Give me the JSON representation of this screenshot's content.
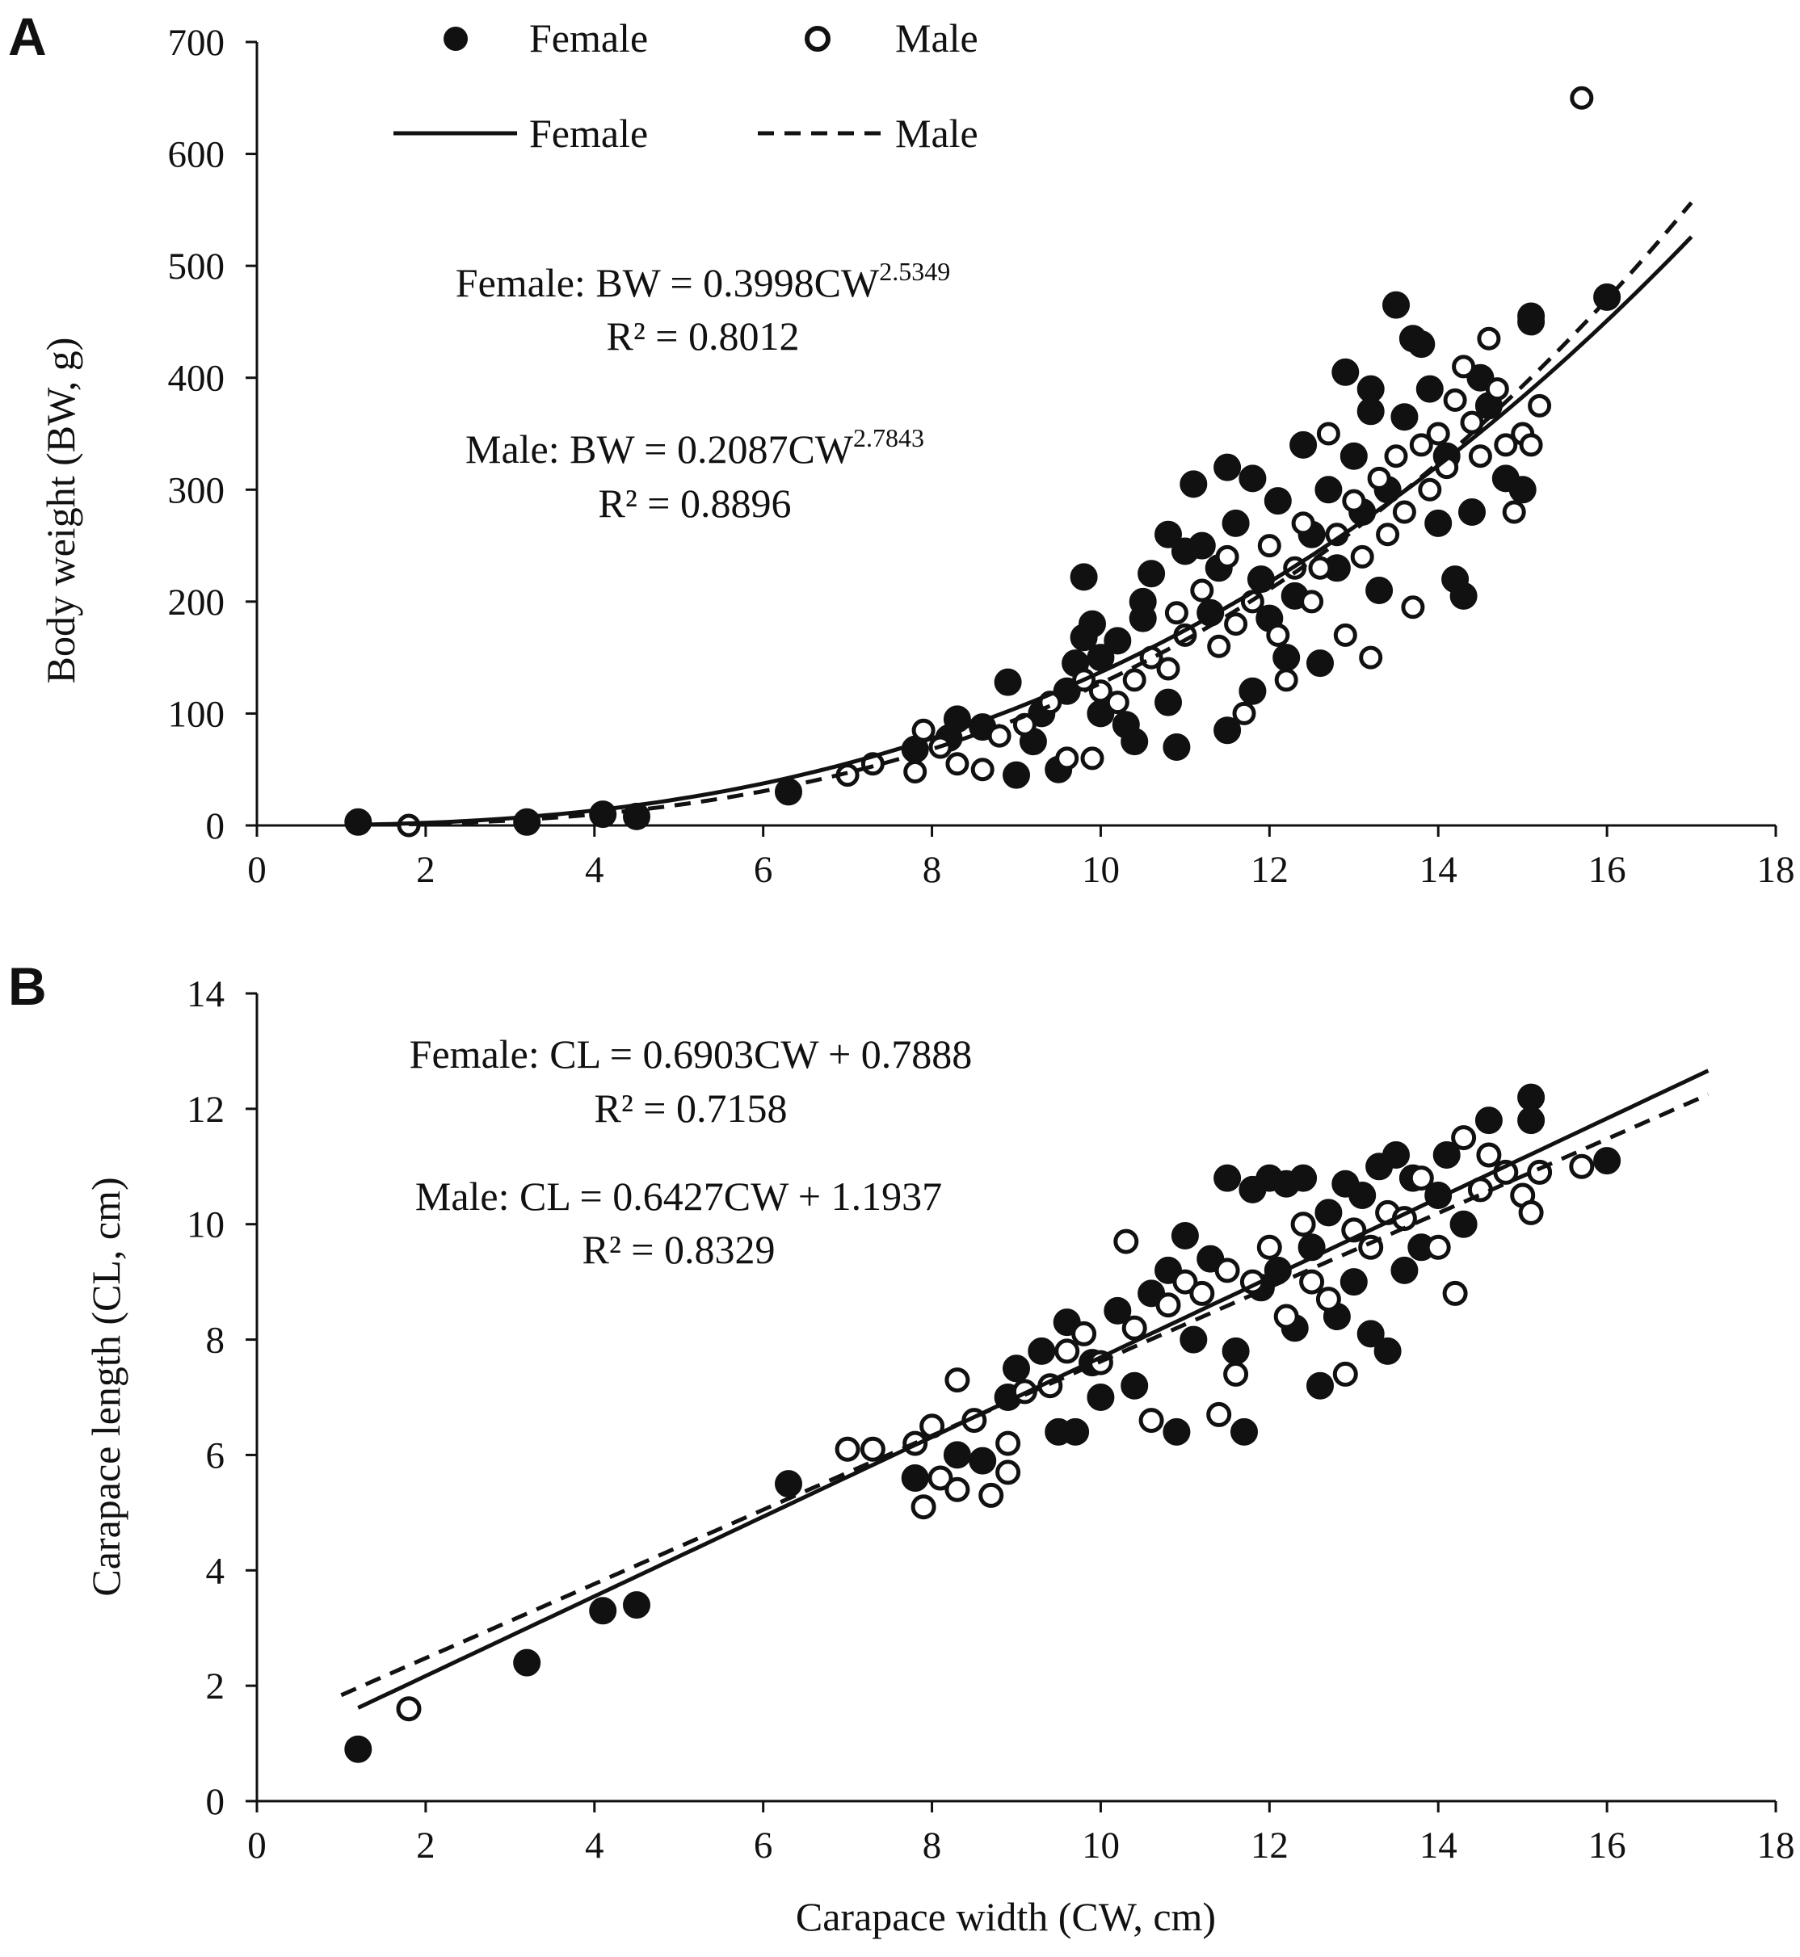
{
  "colors": {
    "ink": "#111111",
    "background": "#ffffff"
  },
  "chart_data": [
    {
      "panel": "A",
      "type": "scatter",
      "xlabel": "",
      "ylabel": "Body weight (BW, g)",
      "xlim": [
        0,
        18
      ],
      "ylim": [
        0,
        700
      ],
      "xticks": [
        "0",
        "2",
        "4",
        "6",
        "8",
        "10",
        "12",
        "14",
        "16",
        "18"
      ],
      "yticks": [
        "0",
        "100",
        "200",
        "300",
        "400",
        "500",
        "600",
        "700"
      ],
      "legend": {
        "marker_female": "Female",
        "marker_male": "Male",
        "line_female": "Female",
        "line_male": "Male",
        "placement": "top"
      },
      "equations": {
        "female_prefix": "Female: BW = 0.3998CW",
        "female_exp": "2.5349",
        "female_r2": "R² = 0.8012",
        "male_prefix": "Male: BW = 0.2087CW",
        "male_exp": "2.7843",
        "male_r2": "R² = 0.8896"
      },
      "fits": [
        {
          "series": "Female",
          "model": "power",
          "a": 0.3998,
          "b": 2.5349,
          "x_range": [
            1.2,
            17.0
          ],
          "style": "solid"
        },
        {
          "series": "Male",
          "model": "power",
          "a": 0.2087,
          "b": 2.7843,
          "x_range": [
            1.8,
            17.0
          ],
          "style": "dashed"
        }
      ],
      "series": [
        {
          "name": "Female",
          "marker": "filled-circle",
          "points": [
            [
              1.2,
              3
            ],
            [
              3.2,
              3
            ],
            [
              4.1,
              10
            ],
            [
              4.5,
              8
            ],
            [
              6.3,
              30
            ],
            [
              7.8,
              68
            ],
            [
              8.2,
              78
            ],
            [
              8.3,
              95
            ],
            [
              8.6,
              88
            ],
            [
              8.9,
              128
            ],
            [
              9.0,
              45
            ],
            [
              9.2,
              75
            ],
            [
              9.3,
              100
            ],
            [
              9.5,
              50
            ],
            [
              9.6,
              120
            ],
            [
              9.7,
              145
            ],
            [
              9.8,
              168
            ],
            [
              9.8,
              222
            ],
            [
              9.9,
              180
            ],
            [
              10.0,
              150
            ],
            [
              10.0,
              100
            ],
            [
              10.2,
              165
            ],
            [
              10.3,
              90
            ],
            [
              10.4,
              75
            ],
            [
              10.5,
              185
            ],
            [
              10.5,
              200
            ],
            [
              10.6,
              225
            ],
            [
              10.8,
              260
            ],
            [
              10.8,
              110
            ],
            [
              10.9,
              70
            ],
            [
              11.0,
              245
            ],
            [
              11.1,
              305
            ],
            [
              11.2,
              250
            ],
            [
              11.3,
              190
            ],
            [
              11.4,
              230
            ],
            [
              11.5,
              320
            ],
            [
              11.5,
              85
            ],
            [
              11.6,
              270
            ],
            [
              11.8,
              310
            ],
            [
              11.8,
              120
            ],
            [
              11.9,
              220
            ],
            [
              12.0,
              185
            ],
            [
              12.1,
              290
            ],
            [
              12.2,
              150
            ],
            [
              12.3,
              205
            ],
            [
              12.4,
              340
            ],
            [
              12.5,
              260
            ],
            [
              12.6,
              145
            ],
            [
              12.7,
              300
            ],
            [
              12.8,
              230
            ],
            [
              12.9,
              405
            ],
            [
              13.0,
              330
            ],
            [
              13.1,
              280
            ],
            [
              13.2,
              390
            ],
            [
              13.2,
              370
            ],
            [
              13.3,
              210
            ],
            [
              13.4,
              300
            ],
            [
              13.5,
              465
            ],
            [
              13.6,
              365
            ],
            [
              13.7,
              435
            ],
            [
              13.8,
              430
            ],
            [
              13.9,
              390
            ],
            [
              14.0,
              270
            ],
            [
              14.1,
              330
            ],
            [
              14.2,
              220
            ],
            [
              14.3,
              205
            ],
            [
              14.4,
              280
            ],
            [
              14.5,
              400
            ],
            [
              14.6,
              375
            ],
            [
              14.8,
              310
            ],
            [
              15.0,
              300
            ],
            [
              15.1,
              455
            ],
            [
              15.1,
              450
            ],
            [
              16.0,
              472
            ]
          ]
        },
        {
          "name": "Male",
          "marker": "open-circle",
          "points": [
            [
              1.8,
              0
            ],
            [
              7.0,
              45
            ],
            [
              7.3,
              55
            ],
            [
              7.8,
              48
            ],
            [
              7.9,
              85
            ],
            [
              8.1,
              70
            ],
            [
              8.3,
              55
            ],
            [
              8.6,
              50
            ],
            [
              8.8,
              80
            ],
            [
              9.1,
              90
            ],
            [
              9.4,
              110
            ],
            [
              9.6,
              60
            ],
            [
              9.8,
              130
            ],
            [
              9.9,
              60
            ],
            [
              10.0,
              120
            ],
            [
              10.2,
              110
            ],
            [
              10.4,
              130
            ],
            [
              10.6,
              150
            ],
            [
              10.8,
              140
            ],
            [
              10.9,
              190
            ],
            [
              11.0,
              170
            ],
            [
              11.2,
              210
            ],
            [
              11.4,
              160
            ],
            [
              11.5,
              240
            ],
            [
              11.6,
              180
            ],
            [
              11.7,
              100
            ],
            [
              11.8,
              200
            ],
            [
              12.0,
              250
            ],
            [
              12.1,
              170
            ],
            [
              12.2,
              130
            ],
            [
              12.3,
              230
            ],
            [
              12.4,
              270
            ],
            [
              12.5,
              200
            ],
            [
              12.6,
              230
            ],
            [
              12.7,
              350
            ],
            [
              12.8,
              260
            ],
            [
              12.9,
              170
            ],
            [
              13.0,
              290
            ],
            [
              13.1,
              240
            ],
            [
              13.2,
              150
            ],
            [
              13.3,
              310
            ],
            [
              13.4,
              260
            ],
            [
              13.5,
              330
            ],
            [
              13.6,
              280
            ],
            [
              13.7,
              195
            ],
            [
              13.8,
              340
            ],
            [
              13.9,
              300
            ],
            [
              14.0,
              350
            ],
            [
              14.1,
              320
            ],
            [
              14.2,
              380
            ],
            [
              14.3,
              410
            ],
            [
              14.4,
              360
            ],
            [
              14.5,
              330
            ],
            [
              14.6,
              435
            ],
            [
              14.7,
              390
            ],
            [
              14.8,
              340
            ],
            [
              14.9,
              280
            ],
            [
              15.0,
              350
            ],
            [
              15.1,
              340
            ],
            [
              15.2,
              375
            ],
            [
              15.7,
              650
            ]
          ]
        }
      ]
    },
    {
      "panel": "B",
      "type": "scatter",
      "xlabel": "Carapace width (CW, cm)",
      "ylabel": "Carapace length (CL, cm)",
      "xlim": [
        0,
        18
      ],
      "ylim": [
        0,
        14
      ],
      "xticks": [
        "0",
        "2",
        "4",
        "6",
        "8",
        "10",
        "12",
        "14",
        "16",
        "18"
      ],
      "yticks": [
        "0",
        "2",
        "4",
        "6",
        "8",
        "10",
        "12",
        "14"
      ],
      "equations": {
        "female_eq": "Female: CL = 0.6903CW + 0.7888",
        "female_r2": "R² = 0.7158",
        "male_eq": "Male: CL = 0.6427CW + 1.1937",
        "male_r2": "R² = 0.8329"
      },
      "fits": [
        {
          "series": "Female",
          "model": "linear",
          "slope": 0.6903,
          "intercept": 0.7888,
          "x_range": [
            1.2,
            17.2
          ],
          "style": "solid"
        },
        {
          "series": "Male",
          "model": "linear",
          "slope": 0.6427,
          "intercept": 1.1937,
          "x_range": [
            1.0,
            17.2
          ],
          "style": "dashed"
        }
      ],
      "series": [
        {
          "name": "Female",
          "marker": "filled-circle",
          "points": [
            [
              1.2,
              0.9
            ],
            [
              3.2,
              2.4
            ],
            [
              4.1,
              3.3
            ],
            [
              4.5,
              3.4
            ],
            [
              6.3,
              5.5
            ],
            [
              7.8,
              5.6
            ],
            [
              8.3,
              6.0
            ],
            [
              8.6,
              5.9
            ],
            [
              8.9,
              7.0
            ],
            [
              9.0,
              7.5
            ],
            [
              9.3,
              7.8
            ],
            [
              9.5,
              6.4
            ],
            [
              9.6,
              8.3
            ],
            [
              9.7,
              6.4
            ],
            [
              9.9,
              7.6
            ],
            [
              10.0,
              7.0
            ],
            [
              10.2,
              8.5
            ],
            [
              10.4,
              7.2
            ],
            [
              10.6,
              8.8
            ],
            [
              10.8,
              9.2
            ],
            [
              10.9,
              6.4
            ],
            [
              11.0,
              9.8
            ],
            [
              11.1,
              8.0
            ],
            [
              11.3,
              9.4
            ],
            [
              11.5,
              10.8
            ],
            [
              11.6,
              7.8
            ],
            [
              11.7,
              6.4
            ],
            [
              11.8,
              10.6
            ],
            [
              11.9,
              8.9
            ],
            [
              12.0,
              10.8
            ],
            [
              12.1,
              9.2
            ],
            [
              12.2,
              10.7
            ],
            [
              12.3,
              8.2
            ],
            [
              12.4,
              10.8
            ],
            [
              12.5,
              9.6
            ],
            [
              12.6,
              7.2
            ],
            [
              12.7,
              10.2
            ],
            [
              12.8,
              8.4
            ],
            [
              12.9,
              10.7
            ],
            [
              13.0,
              9.0
            ],
            [
              13.1,
              10.5
            ],
            [
              13.2,
              8.1
            ],
            [
              13.3,
              11.0
            ],
            [
              13.4,
              7.8
            ],
            [
              13.5,
              11.2
            ],
            [
              13.6,
              9.2
            ],
            [
              13.7,
              10.8
            ],
            [
              13.8,
              9.6
            ],
            [
              14.0,
              10.5
            ],
            [
              14.1,
              11.2
            ],
            [
              14.3,
              10.0
            ],
            [
              14.6,
              11.8
            ],
            [
              15.1,
              12.2
            ],
            [
              15.1,
              11.8
            ],
            [
              16.0,
              11.1
            ]
          ]
        },
        {
          "name": "Male",
          "marker": "open-circle",
          "points": [
            [
              1.8,
              1.6
            ],
            [
              7.0,
              6.1
            ],
            [
              7.3,
              6.1
            ],
            [
              7.8,
              6.2
            ],
            [
              7.9,
              5.1
            ],
            [
              8.0,
              6.5
            ],
            [
              8.1,
              5.6
            ],
            [
              8.3,
              7.3
            ],
            [
              8.3,
              5.4
            ],
            [
              8.5,
              6.6
            ],
            [
              8.7,
              5.3
            ],
            [
              8.9,
              5.7
            ],
            [
              8.9,
              6.2
            ],
            [
              9.1,
              7.1
            ],
            [
              9.4,
              7.2
            ],
            [
              9.6,
              7.8
            ],
            [
              9.8,
              8.1
            ],
            [
              10.0,
              7.6
            ],
            [
              10.3,
              9.7
            ],
            [
              10.4,
              8.2
            ],
            [
              10.6,
              6.6
            ],
            [
              10.8,
              8.6
            ],
            [
              11.0,
              9.0
            ],
            [
              11.2,
              8.8
            ],
            [
              11.4,
              6.7
            ],
            [
              11.5,
              9.2
            ],
            [
              11.6,
              7.4
            ],
            [
              11.8,
              9.0
            ],
            [
              12.0,
              9.6
            ],
            [
              12.2,
              8.4
            ],
            [
              12.4,
              10.0
            ],
            [
              12.5,
              9.0
            ],
            [
              12.7,
              8.7
            ],
            [
              12.9,
              7.4
            ],
            [
              13.0,
              9.9
            ],
            [
              13.2,
              9.6
            ],
            [
              13.4,
              10.2
            ],
            [
              13.6,
              10.1
            ],
            [
              13.8,
              10.8
            ],
            [
              14.0,
              9.6
            ],
            [
              14.2,
              8.8
            ],
            [
              14.3,
              11.5
            ],
            [
              14.5,
              10.6
            ],
            [
              14.6,
              11.2
            ],
            [
              14.8,
              10.9
            ],
            [
              15.0,
              10.5
            ],
            [
              15.1,
              10.2
            ],
            [
              15.2,
              10.9
            ],
            [
              15.7,
              11.0
            ]
          ]
        }
      ]
    }
  ]
}
